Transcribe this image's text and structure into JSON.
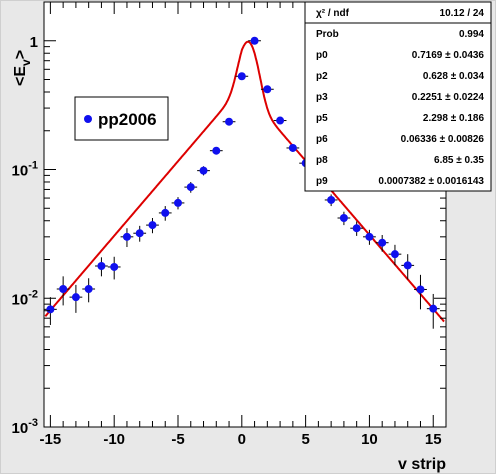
{
  "chart_data": {
    "type": "scatter",
    "xlabel": "v strip",
    "ylabel_main": "<E",
    "ylabel_sub": "v",
    "ylabel_close": ">",
    "x_range": [
      -15.5,
      16
    ],
    "y_range": [
      0.001,
      2
    ],
    "y_scale": "log",
    "x_ticks": [
      -15,
      -10,
      -5,
      0,
      5,
      10,
      15
    ],
    "x_tick_labels": [
      "-15",
      "-10",
      "-5",
      "0",
      "5",
      "10",
      "15"
    ],
    "y_ticks": [
      {
        "value": 0.001,
        "base": "10",
        "exp": "-3"
      },
      {
        "value": 0.01,
        "base": "10",
        "exp": "-2"
      },
      {
        "value": 0.1,
        "base": "10",
        "exp": "-1"
      },
      {
        "value": 1,
        "base": "1",
        "exp": ""
      }
    ],
    "legend": {
      "label": "pp2006",
      "position": "top-left"
    },
    "series": [
      {
        "name": "pp2006",
        "color": "#1010ee",
        "x": [
          -15,
          -14,
          -13,
          -12,
          -11,
          -10,
          -9,
          -8,
          -7,
          -6,
          -5,
          -4,
          -3,
          -2,
          -1,
          0,
          1,
          2,
          3,
          4,
          5,
          6,
          7,
          8,
          9,
          10,
          11,
          12,
          13,
          14,
          15
        ],
        "y": [
          0.0082,
          0.0118,
          0.0102,
          0.0118,
          0.0178,
          0.0175,
          0.03,
          0.032,
          0.037,
          0.046,
          0.055,
          0.073,
          0.098,
          0.14,
          0.235,
          0.53,
          1.0,
          0.42,
          0.24,
          0.147,
          0.112,
          0.076,
          0.058,
          0.042,
          0.035,
          0.03,
          0.027,
          0.022,
          0.018,
          0.0117,
          0.0083
        ],
        "yerr": [
          0.002,
          0.003,
          0.0025,
          0.0025,
          0.003,
          0.0035,
          0.005,
          0.0045,
          0.005,
          0.006,
          0.006,
          0.007,
          0.008,
          0.009,
          0.012,
          0.03,
          0.05,
          0.02,
          0.012,
          0.01,
          0.008,
          0.007,
          0.006,
          0.005,
          0.0045,
          0.004,
          0.004,
          0.004,
          0.004,
          0.0035,
          0.0025
        ]
      }
    ],
    "fit": {
      "name": "fit",
      "color": "#dd0000"
    },
    "grid": false
  },
  "stats": [
    {
      "name": "χ² / ndf",
      "value": "10.12 / 24"
    },
    {
      "name": "Prob",
      "value": "0.994"
    },
    {
      "name": "p0",
      "value": "0.7169 ± 0.0436"
    },
    {
      "name": "p2",
      "value": "0.628 ± 0.034"
    },
    {
      "name": "p3",
      "value": "0.2251 ± 0.0224"
    },
    {
      "name": "p5",
      "value": "2.298 ± 0.186"
    },
    {
      "name": "p6",
      "value": "0.06336 ± 0.00826"
    },
    {
      "name": "p8",
      "value": "6.85 ± 0.35"
    },
    {
      "name": "p9",
      "value": "0.0007382 ± 0.0016143"
    }
  ]
}
